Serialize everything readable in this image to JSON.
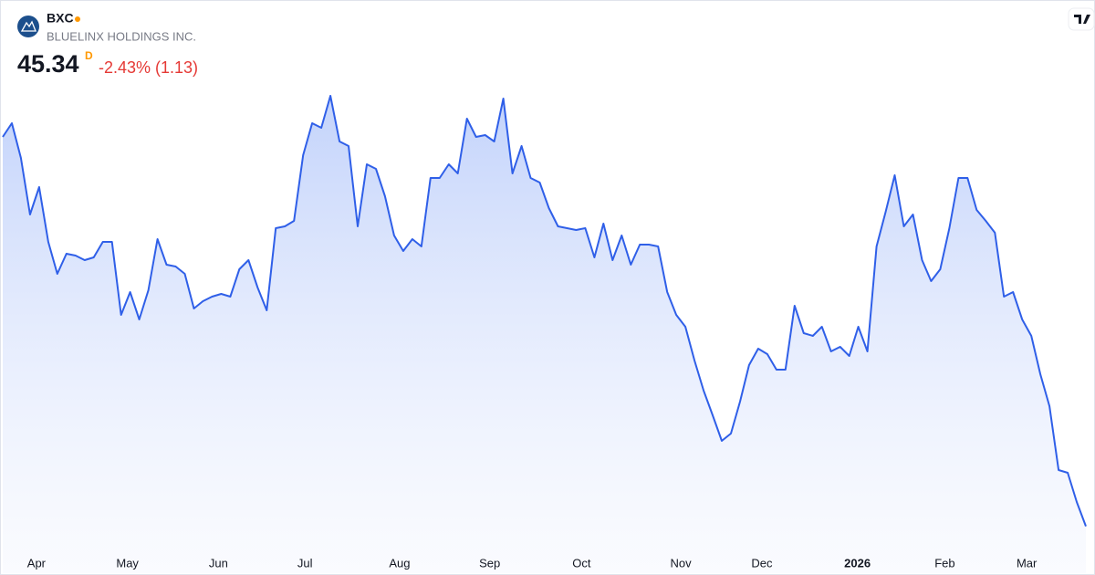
{
  "chart_data": {
    "type": "area",
    "title": "BXC",
    "subtitle": "BLUELINX HOLDINGS INC.",
    "price": "45.34",
    "interval": "D",
    "change": "-2.43% (1.13)",
    "color": "#2f5fe8",
    "values": [
      88.0,
      89.5,
      85.7,
      79.5,
      82.5,
      76.5,
      73.0,
      75.2,
      75.0,
      74.5,
      74.8,
      76.5,
      76.5,
      68.5,
      71.0,
      68.0,
      71.2,
      76.8,
      74.0,
      73.8,
      73.0,
      69.2,
      70.0,
      70.5,
      70.8,
      70.5,
      73.5,
      74.5,
      71.5,
      69.0,
      78.0,
      78.2,
      78.8,
      86.0,
      89.5,
      89.0,
      92.5,
      87.5,
      87.0,
      78.2,
      85.0,
      84.5,
      81.5,
      77.2,
      75.5,
      76.8,
      76.0,
      83.5,
      83.5,
      85.0,
      84.0,
      90.0,
      88.0,
      88.2,
      87.5,
      92.2,
      84.0,
      87.0,
      83.5,
      83.0,
      80.2,
      78.2,
      78.0,
      77.8,
      78.0,
      74.8,
      78.5,
      74.5,
      77.2,
      74.0,
      76.2,
      76.2,
      76.0,
      71.0,
      68.5,
      67.2,
      63.5,
      60.2,
      57.5,
      54.7,
      55.5,
      59.0,
      63.0,
      64.8,
      64.2,
      62.5,
      62.5,
      69.5,
      66.5,
      66.2,
      67.2,
      64.5,
      65.0,
      64.0,
      67.2,
      64.5,
      76.0,
      79.8,
      83.8,
      78.2,
      79.5,
      74.5,
      72.2,
      73.5,
      78.0,
      83.5,
      83.5,
      80.0,
      78.8,
      77.5,
      70.5,
      71.0,
      68.0,
      66.2,
      62.0,
      58.5,
      51.5,
      51.2,
      48.0,
      45.34
    ],
    "xlim": [
      0,
      119
    ],
    "ylim": [
      43,
      94
    ],
    "xticks": [
      {
        "value": 3.7,
        "label": "Apr"
      },
      {
        "value": 13.7,
        "label": "May"
      },
      {
        "value": 23.7,
        "label": "Jun"
      },
      {
        "value": 33.2,
        "label": "Jul"
      },
      {
        "value": 43.6,
        "label": "Aug"
      },
      {
        "value": 53.5,
        "label": "Sep"
      },
      {
        "value": 63.6,
        "label": "Oct"
      },
      {
        "value": 74.5,
        "label": "Nov"
      },
      {
        "value": 83.4,
        "label": "Dec"
      },
      {
        "value": 93.9,
        "label": "2026"
      },
      {
        "value": 103.5,
        "label": "Feb"
      },
      {
        "value": 112.5,
        "label": "Mar"
      }
    ]
  }
}
